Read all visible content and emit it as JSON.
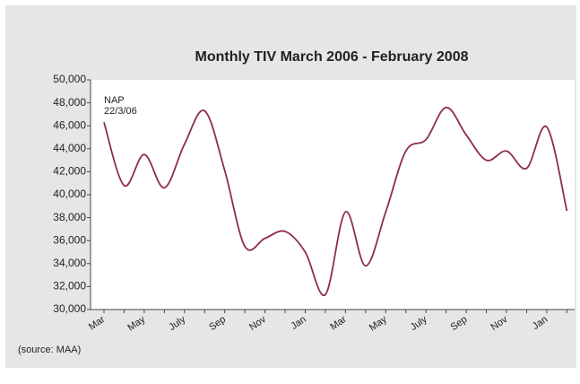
{
  "chart_data": {
    "type": "line",
    "title": "Monthly TIV March 2006 - February 2008",
    "annotation": [
      "NAP",
      "22/3/06"
    ],
    "source": "(source: MAA)",
    "categories": [
      "Mar",
      null,
      "May",
      null,
      "July",
      null,
      "Sep",
      null,
      "Nov",
      null,
      "Jan",
      null,
      "Mar",
      null,
      "May",
      null,
      "July",
      null,
      "Sep",
      null,
      "Nov",
      null,
      "Jan",
      null
    ],
    "series": [
      {
        "name": "TIV",
        "color": "#8e2a58",
        "values": [
          46300,
          40800,
          43500,
          40600,
          44400,
          47300,
          42100,
          35500,
          36200,
          36800,
          35000,
          31300,
          38500,
          33800,
          38500,
          43800,
          44800,
          47600,
          45200,
          43000,
          43800,
          42300,
          45900,
          38600
        ]
      }
    ],
    "ylim": [
      30000,
      50000
    ],
    "yticks": [
      {
        "value": 30000,
        "label": "30,000"
      },
      {
        "value": 32000,
        "label": "32,000"
      },
      {
        "value": 34000,
        "label": "34,000"
      },
      {
        "value": 36000,
        "label": "36,000"
      },
      {
        "value": 38000,
        "label": "38,000"
      },
      {
        "value": 40000,
        "label": "40,000"
      },
      {
        "value": 42000,
        "label": "42,000"
      },
      {
        "value": 44000,
        "label": "44,000"
      },
      {
        "value": 46000,
        "label": "46,000"
      },
      {
        "value": 48000,
        "label": "48,000"
      },
      {
        "value": 50000,
        "label": "50,000"
      }
    ]
  }
}
